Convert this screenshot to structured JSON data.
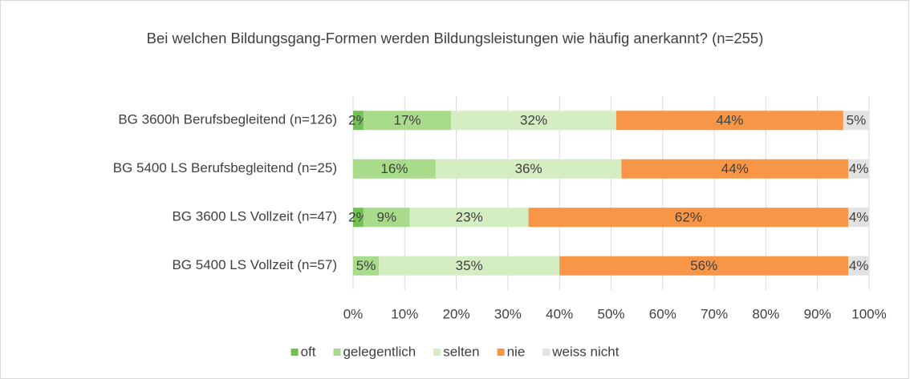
{
  "chart_data": {
    "type": "stacked_barh",
    "title": "Bei welchen Bildungsgang-Formen werden Bildungsleistungen wie häufig anerkannt? (n=255)",
    "categories": [
      "BG 3600h Berufsbegleitend (n=126)",
      "BG 5400 LS Berufsbegleitend (n=25)",
      "BG 3600 LS Vollzeit (n=47)",
      "BG 5400 LS Vollzeit (n=57)"
    ],
    "series": [
      {
        "name": "oft",
        "color": "#70c052",
        "values": [
          2,
          null,
          2,
          null
        ],
        "value_labels": [
          "2%",
          null,
          "2%",
          null
        ]
      },
      {
        "name": "gelegentlich",
        "color": "#a9dc8a",
        "values": [
          17,
          16,
          9,
          5
        ],
        "value_labels": [
          "17%",
          "16%",
          "9%",
          "5%"
        ]
      },
      {
        "name": "selten",
        "color": "#d5edc2",
        "values": [
          32,
          36,
          23,
          35
        ],
        "value_labels": [
          "32%",
          "36%",
          "23%",
          "35%"
        ]
      },
      {
        "name": "nie",
        "color": "#f79646",
        "values": [
          44,
          44,
          62,
          56
        ],
        "value_labels": [
          "44%",
          "44%",
          "62%",
          "56%"
        ]
      },
      {
        "name": "weiss nicht",
        "color": "#e2e2e2",
        "values": [
          5,
          4,
          4,
          4
        ],
        "value_labels": [
          "5%",
          "4%",
          "4%",
          "4%"
        ]
      }
    ],
    "xlim": [
      0,
      100
    ],
    "xticks": [
      {
        "value": 0,
        "label": "0%"
      },
      {
        "value": 10,
        "label": "10%"
      },
      {
        "value": 20,
        "label": "20%"
      },
      {
        "value": 30,
        "label": "30%"
      },
      {
        "value": 40,
        "label": "40%"
      },
      {
        "value": 50,
        "label": "50%"
      },
      {
        "value": 60,
        "label": "60%"
      },
      {
        "value": 70,
        "label": "70%"
      },
      {
        "value": 80,
        "label": "80%"
      },
      {
        "value": 90,
        "label": "90%"
      },
      {
        "value": 100,
        "label": "100%"
      }
    ],
    "grid": true,
    "legend": "bottom"
  }
}
